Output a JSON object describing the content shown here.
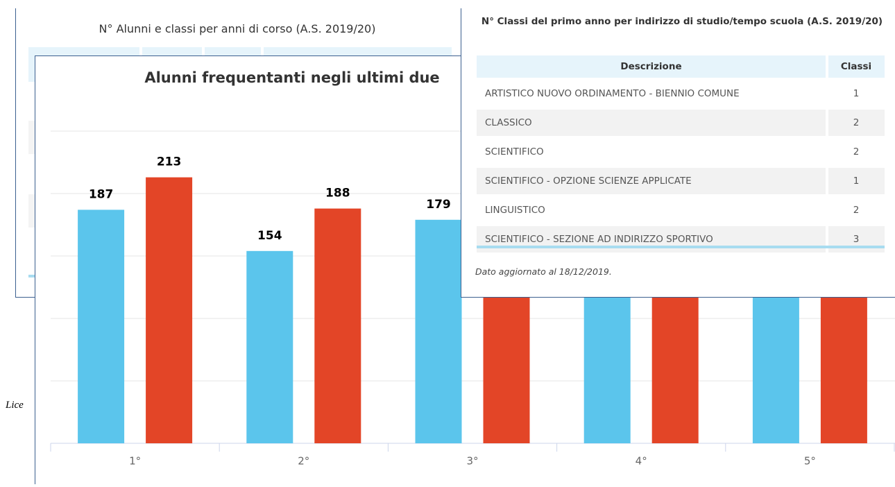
{
  "back_panel": {
    "title": "N° Alunni e classi per anni di corso (A.S. 2019/20)"
  },
  "side_text": "Lice",
  "chart_data": {
    "type": "bar",
    "title": "Alunni frequentanti negli ultimi due",
    "categories": [
      "1°",
      "2°",
      "3°",
      "4°",
      "5°"
    ],
    "series": [
      {
        "color": "#5bc5ec",
        "values": [
          187,
          154,
          179,
          null,
          null
        ]
      },
      {
        "color": "#e34527",
        "values": [
          213,
          188,
          null,
          null,
          null
        ]
      }
    ],
    "ylim": [
      0,
      250
    ],
    "yticks": [
      0,
      50,
      100,
      150,
      200,
      250
    ],
    "grid": true
  },
  "table_panel": {
    "title": "N° Classi del primo anno per indirizzo di studio/tempo scuola (A.S. 2019/20)",
    "table": {
      "header": [
        "Descrizione",
        "Classi"
      ],
      "rows": [
        [
          "ARTISTICO NUOVO ORDINAMENTO - BIENNIO COMUNE",
          "1"
        ],
        [
          "CLASSICO",
          "2"
        ],
        [
          "SCIENTIFICO",
          "2"
        ],
        [
          "SCIENTIFICO - OPZIONE SCIENZE APPLICATE",
          "1"
        ],
        [
          "LINGUISTICO",
          "2"
        ],
        [
          "SCIENTIFICO - SEZIONE AD INDIRIZZO SPORTIVO",
          "3"
        ]
      ]
    },
    "footer": "Dato aggiornato al 18/12/2019."
  }
}
